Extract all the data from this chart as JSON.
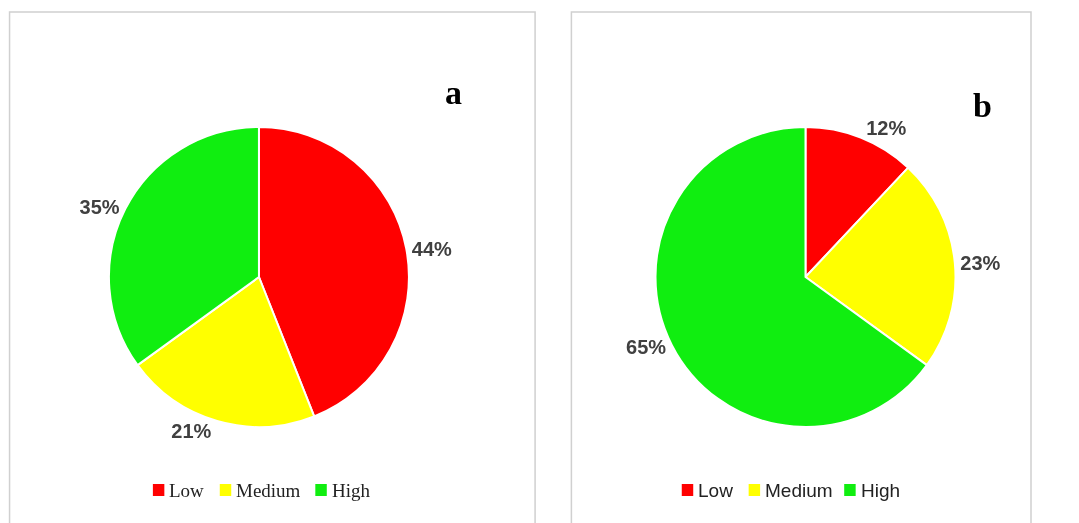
{
  "chart_data": [
    {
      "type": "pie",
      "title": "a",
      "categories": [
        "Low",
        "Medium",
        "High"
      ],
      "values": [
        44,
        21,
        35
      ],
      "value_labels": [
        "44%",
        "21%",
        "35%"
      ],
      "colors": [
        "#ff0000",
        "#ffff00",
        "#10ee10"
      ],
      "legend": "bottom"
    },
    {
      "type": "pie",
      "title": "b",
      "categories": [
        "Low",
        "Medium",
        "High"
      ],
      "values": [
        12,
        23,
        65
      ],
      "value_labels": [
        "12%",
        "23%",
        "65%"
      ],
      "colors": [
        "#ff0000",
        "#ffff00",
        "#10ee10"
      ],
      "legend": "bottom"
    }
  ]
}
